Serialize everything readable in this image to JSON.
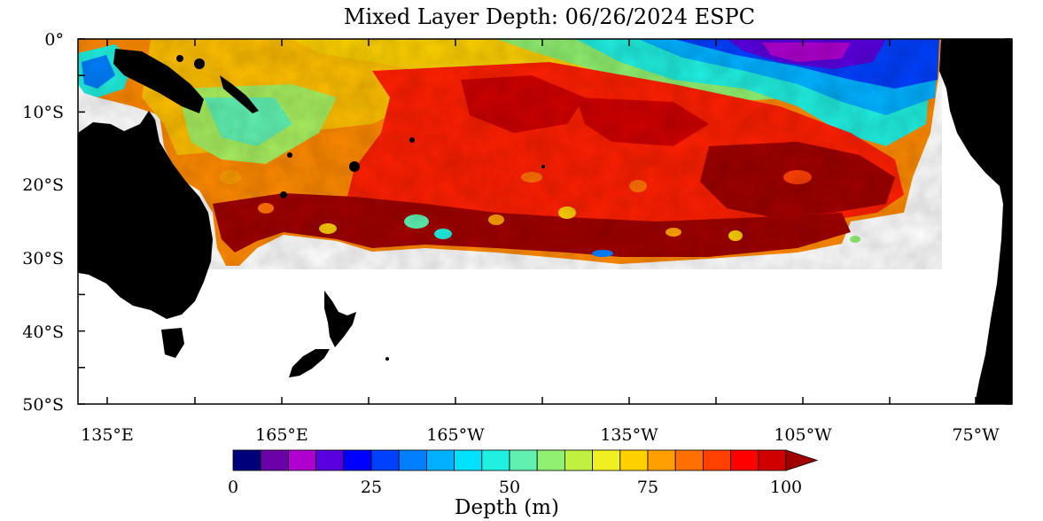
{
  "map": {
    "title": "Mixed Layer Depth: 06/26/2024 ESPC",
    "lat_labels": [
      "0°",
      "10°S",
      "20°S",
      "30°S",
      "40°S",
      "50°S"
    ],
    "lon_labels": [
      "135°E",
      "165°E",
      "165°W",
      "135°W",
      "105°W",
      "75°W"
    ],
    "land_color": "#000000",
    "no_data_color": "#ffffff"
  },
  "colorbar": {
    "label": "Depth (m)",
    "tick_labels": [
      "0",
      "25",
      "50",
      "75",
      "100"
    ],
    "colors": [
      "#00007a",
      "#6b00a8",
      "#b000d0",
      "#5a00e0",
      "#0000ff",
      "#0040ff",
      "#0080ff",
      "#00b0ff",
      "#00e0ff",
      "#20f0e0",
      "#60f0b0",
      "#90f070",
      "#c0f040",
      "#f0f020",
      "#ffd000",
      "#ffa000",
      "#ff7000",
      "#ff4000",
      "#ff0000",
      "#d00000",
      "#a00000"
    ]
  }
}
